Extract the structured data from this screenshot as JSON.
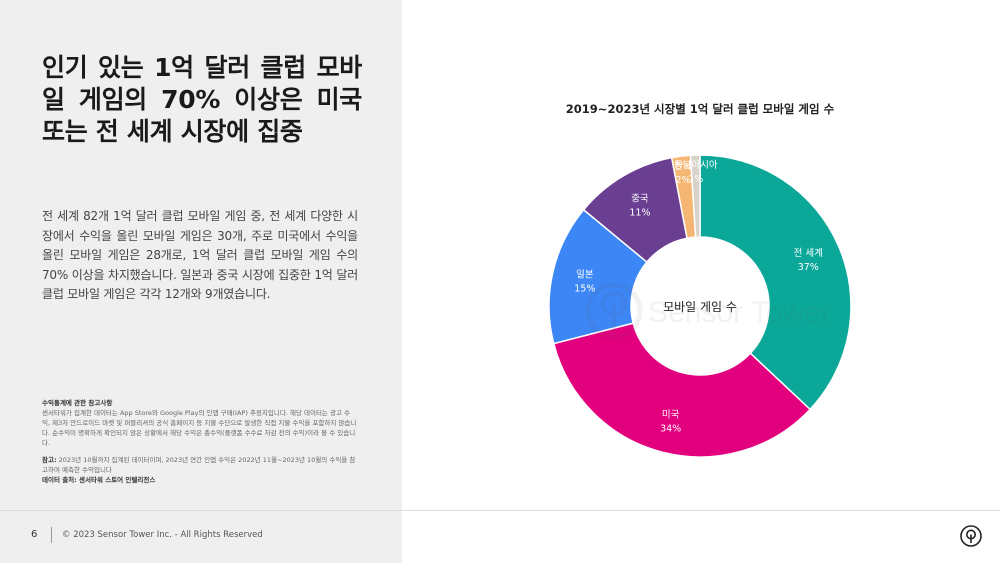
{
  "headline": "인기 있는 1억 달러 클럽 모바일 게임의 70% 이상은 미국 또는 전 세계 시장에 집중",
  "body": "전 세계 82개 1억 달러 클럽 모바일 게임 중, 전 세계 다양한 시장에서 수익을 올린 모바일 게임은 30개, 주로 미국에서 수익을 올린 모바일 게임은 28개로, 1억 달러 클럽 모바일 게임 수의 70% 이상을 차지했습니다. 일본과 중국 시장에 집중한 1억 달러 클럽 모바일 게임은 각각 12개와 9개였습니다.",
  "notes": {
    "title": "수익통계에 관한 참고사항",
    "text": "센서타워가 집계한 데이터는 App Store와 Google Play의 인앱 구매(IAP) 추정치입니다. 해당 데이터는 광고 수익, 제3자 안드로이드 마켓 및 퍼블리셔의 공식 홈페이지 등 지불 수단으로 발생한 직접 지불 수익을 포함하지 않습니다. 순수익이 명확하게 확인되지 않은 상황에서 해당 수익은 총수익(플랫폼 수수료 차감 전의 수익)이라 볼 수 있습니다.",
    "ref_label": "참고:",
    "ref_text": " 2023년 10월까지 집계된 데이터이며, 2023년 연간 인앱 수익은 2022년 11월~2023년 10월의 수익을 참고하여 예측한 수익입니다",
    "source": "데이터 출처: 센서타워 스토어 인텔리전스"
  },
  "footer": {
    "page": "6",
    "copyright": "© 2023 Sensor Tower Inc. - All Rights Reserved"
  },
  "watermark": "Sensor Tower",
  "chart_data": {
    "type": "pie",
    "title": "2019~2023년 시장별 1억 달러 클럽 모바일 게임 수",
    "center_label": "모바일 게임 수",
    "slices": [
      {
        "label": "전 세계",
        "value": 37,
        "display": "37%",
        "color": "#0ba89a"
      },
      {
        "label": "미국",
        "value": 34,
        "display": "34%",
        "color": "#e3007f"
      },
      {
        "label": "일본",
        "value": 15,
        "display": "15%",
        "color": "#3d86f5"
      },
      {
        "label": "중국",
        "value": 11,
        "display": "11%",
        "color": "#6a3f91"
      },
      {
        "label": "한국",
        "value": 2,
        "display": "2%",
        "color": "#f5b673"
      },
      {
        "label": "동남아시아",
        "value": 1,
        "display": "1%",
        "color": "#d7d2c8"
      }
    ]
  }
}
